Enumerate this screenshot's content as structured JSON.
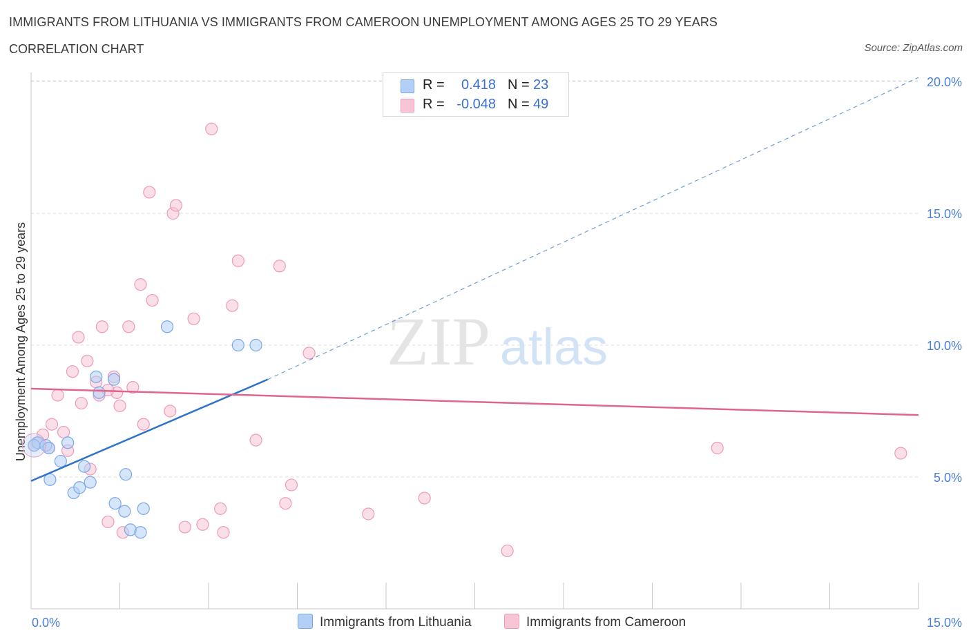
{
  "title": "IMMIGRANTS FROM LITHUANIA VS IMMIGRANTS FROM CAMEROON UNEMPLOYMENT AMONG AGES 25 TO 29 YEARS",
  "subtitle": "CORRELATION CHART",
  "source": "Source: ZipAtlas.com",
  "watermark": {
    "zip": "ZIP",
    "atlas": "atlas"
  },
  "colors": {
    "lithuania_fill": "#b3cff5",
    "lithuania_stroke": "#7aa7e8",
    "lithuania_line": "#2f73c9",
    "cameroon_fill": "#f7c5d5",
    "cameroon_stroke": "#ee9ab5",
    "cameroon_line": "#e0648d",
    "axis_label": "#4a7fd4",
    "grid": "#dddddd"
  },
  "legend": {
    "rows": [
      {
        "r_label": "R =",
        "r_value": "0.418",
        "n_label": "N =",
        "n_value": "23"
      },
      {
        "r_label": "R =",
        "r_value": "-0.048",
        "n_label": "N =",
        "n_value": "49"
      }
    ]
  },
  "chart_data": {
    "type": "scatter",
    "title": "IMMIGRANTS FROM LITHUANIA VS IMMIGRANTS FROM CAMEROON UNEMPLOYMENT AMONG AGES 25 TO 29 YEARS",
    "xlabel": "",
    "ylabel": "Unemployment Among Ages 25 to 29 years",
    "xlim": [
      0,
      15
    ],
    "ylim": [
      0,
      20.5
    ],
    "x_tick_labels": [
      "0.0%",
      "15.0%"
    ],
    "y_ticks": [
      5,
      10,
      15,
      20
    ],
    "y_tick_labels": [
      "5.0%",
      "10.0%",
      "15.0%",
      "20.0%"
    ],
    "grid": true,
    "series": [
      {
        "name": "Immigrants from Lithuania",
        "points": [
          [
            0.12,
            6.3
          ],
          [
            0.25,
            6.2
          ],
          [
            0.32,
            4.9
          ],
          [
            0.5,
            5.6
          ],
          [
            0.62,
            6.3
          ],
          [
            0.72,
            4.4
          ],
          [
            0.82,
            4.6
          ],
          [
            0.9,
            5.4
          ],
          [
            1.0,
            4.8
          ],
          [
            1.1,
            8.8
          ],
          [
            1.15,
            8.2
          ],
          [
            1.4,
            8.7
          ],
          [
            1.42,
            4.0
          ],
          [
            1.58,
            3.7
          ],
          [
            1.6,
            5.1
          ],
          [
            1.68,
            3.0
          ],
          [
            1.85,
            2.9
          ],
          [
            1.9,
            3.8
          ],
          [
            2.3,
            10.7
          ],
          [
            3.5,
            10.0
          ],
          [
            3.8,
            10.0
          ],
          [
            0.05,
            6.2
          ],
          [
            0.3,
            6.1
          ]
        ],
        "trend": {
          "from": [
            0,
            4.85
          ],
          "to": [
            4.0,
            8.7
          ],
          "extended_to": [
            15,
            20.15
          ]
        }
      },
      {
        "name": "Immigrants from Cameroon",
        "points": [
          [
            0.05,
            6.2
          ],
          [
            0.2,
            6.6
          ],
          [
            0.3,
            6.1
          ],
          [
            0.35,
            7.0
          ],
          [
            0.45,
            8.1
          ],
          [
            0.55,
            6.7
          ],
          [
            0.62,
            6.0
          ],
          [
            0.7,
            9.0
          ],
          [
            0.8,
            10.3
          ],
          [
            0.85,
            7.8
          ],
          [
            0.95,
            9.4
          ],
          [
            1.0,
            5.3
          ],
          [
            1.1,
            8.6
          ],
          [
            1.15,
            8.1
          ],
          [
            1.2,
            10.7
          ],
          [
            1.3,
            3.3
          ],
          [
            1.4,
            8.8
          ],
          [
            1.45,
            8.2
          ],
          [
            1.5,
            7.7
          ],
          [
            1.55,
            2.9
          ],
          [
            1.65,
            10.7
          ],
          [
            1.72,
            8.4
          ],
          [
            1.85,
            12.3
          ],
          [
            1.9,
            7.0
          ],
          [
            2.05,
            11.7
          ],
          [
            2.0,
            15.8
          ],
          [
            2.4,
            15.0
          ],
          [
            2.45,
            15.3
          ],
          [
            2.6,
            3.1
          ],
          [
            2.75,
            11.0
          ],
          [
            2.9,
            3.2
          ],
          [
            3.05,
            18.2
          ],
          [
            3.2,
            3.8
          ],
          [
            3.25,
            2.9
          ],
          [
            3.4,
            11.5
          ],
          [
            3.5,
            13.2
          ],
          [
            3.8,
            6.4
          ],
          [
            4.2,
            13.0
          ],
          [
            4.3,
            4.0
          ],
          [
            4.4,
            4.7
          ],
          [
            4.7,
            9.7
          ],
          [
            5.7,
            3.6
          ],
          [
            6.65,
            4.2
          ],
          [
            8.05,
            2.2
          ],
          [
            11.6,
            6.1
          ],
          [
            14.7,
            5.9
          ],
          [
            0.1,
            6.3
          ],
          [
            1.3,
            8.3
          ],
          [
            2.35,
            7.5
          ]
        ],
        "trend": {
          "from": [
            0,
            8.35
          ],
          "to": [
            15,
            7.35
          ]
        }
      }
    ]
  },
  "bottom_legend": {
    "lithuania": "Immigrants from Lithuania",
    "cameroon": "Immigrants from Cameroon"
  }
}
